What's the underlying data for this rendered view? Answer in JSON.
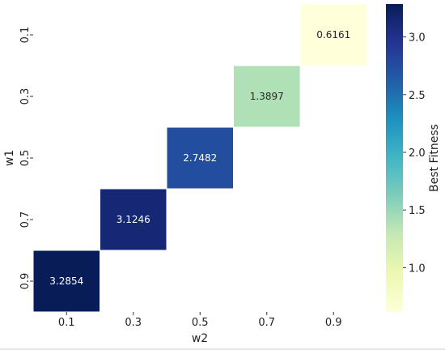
{
  "chart_data": {
    "type": "heatmap",
    "title": "",
    "xlabel": "w2",
    "ylabel": "w1",
    "x_categories": [
      "0.1",
      "0.3",
      "0.5",
      "0.7",
      "0.9"
    ],
    "y_categories": [
      "0.1",
      "0.3",
      "0.5",
      "0.7",
      "0.9"
    ],
    "cells": [
      {
        "w1": "0.1",
        "w2": "0.9",
        "value": 0.6161,
        "label": "0.6161"
      },
      {
        "w1": "0.3",
        "w2": "0.7",
        "value": 1.3897,
        "label": "1.3897"
      },
      {
        "w1": "0.5",
        "w2": "0.5",
        "value": 2.7482,
        "label": "2.7482"
      },
      {
        "w1": "0.7",
        "w2": "0.3",
        "value": 3.1246,
        "label": "3.1246"
      },
      {
        "w1": "0.9",
        "w2": "0.1",
        "value": 3.2854,
        "label": "3.2854"
      }
    ],
    "colorbar": {
      "label": "Best Fitness",
      "colormap": "YlGnBu",
      "range": [
        0.6161,
        3.2854
      ],
      "ticks": [
        "1.0",
        "1.5",
        "2.0",
        "2.5",
        "3.0"
      ],
      "tick_values": [
        1.0,
        1.5,
        2.0,
        2.5,
        3.0
      ]
    },
    "grid": false,
    "legend": "colorbar-right"
  }
}
